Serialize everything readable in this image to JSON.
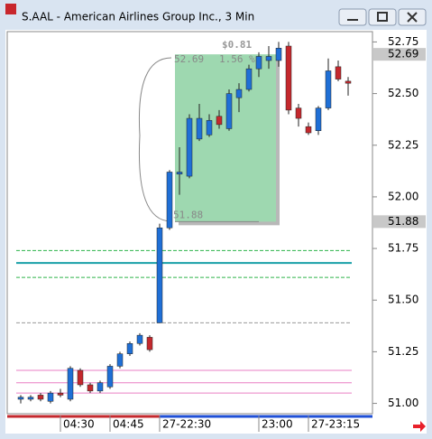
{
  "chart_data": {
    "type": "candlestick",
    "title": "S.AAL - American Airlines Group Inc., 3 Min",
    "categories": [
      null,
      null,
      null,
      null,
      "04:30",
      null,
      null,
      null,
      null,
      "04:45",
      null,
      null,
      null,
      null,
      "27-22:30",
      null,
      null,
      null,
      null,
      null,
      null,
      null,
      null,
      null,
      "23:00",
      null,
      null,
      null,
      null,
      "27-23:15",
      null,
      null,
      null,
      null
    ],
    "open": [
      51.02,
      51.02,
      51.04,
      51.01,
      51.05,
      51.02,
      51.16,
      51.09,
      51.06,
      51.08,
      51.18,
      51.24,
      51.29,
      51.32,
      51.39,
      51.85,
      52.11,
      52.1,
      52.28,
      52.3,
      52.39,
      52.33,
      52.48,
      52.52,
      52.62,
      52.66,
      52.66,
      52.73,
      52.43,
      52.34,
      52.32,
      52.43,
      52.63,
      52.56
    ],
    "high": [
      51.04,
      51.04,
      51.05,
      51.06,
      51.07,
      51.18,
      51.17,
      51.1,
      51.11,
      51.19,
      51.25,
      51.3,
      51.34,
      51.33,
      51.87,
      52.13,
      52.24,
      52.4,
      52.45,
      52.4,
      52.42,
      52.52,
      52.55,
      52.64,
      52.7,
      52.73,
      52.75,
      52.75,
      52.45,
      52.36,
      52.44,
      52.67,
      52.66,
      52.58
    ],
    "low": [
      51.0,
      51.01,
      51.01,
      51.0,
      51.03,
      51.01,
      51.08,
      51.05,
      51.05,
      51.07,
      51.17,
      51.23,
      51.28,
      51.25,
      51.39,
      51.84,
      52.01,
      52.09,
      52.27,
      52.29,
      52.33,
      52.32,
      52.41,
      52.51,
      52.58,
      52.62,
      52.63,
      52.4,
      52.34,
      52.3,
      52.3,
      52.42,
      52.56,
      52.49
    ],
    "close": [
      51.03,
      51.03,
      51.02,
      51.05,
      51.04,
      51.17,
      51.09,
      51.06,
      51.1,
      51.18,
      51.24,
      51.29,
      51.33,
      51.26,
      51.85,
      52.12,
      52.12,
      52.38,
      52.38,
      52.37,
      52.35,
      52.5,
      52.52,
      52.62,
      52.68,
      52.68,
      52.72,
      52.42,
      52.38,
      52.31,
      52.43,
      52.61,
      52.57,
      52.55
    ],
    "up_color": "#1f6fd6",
    "down_color": "#c4282d",
    "ylim": [
      50.95,
      52.8
    ],
    "yticks": [
      {
        "value": 51,
        "label": "51.00"
      },
      51.25,
      {
        "value": 51.5,
        "label": "51.50"
      },
      51.75,
      {
        "value": 52,
        "label": "52.00"
      },
      52.25,
      {
        "value": 52.5,
        "label": "52.50"
      },
      52.75
    ],
    "price_markers": [
      52.69,
      51.88
    ],
    "reference_lines": [
      {
        "value": 51.74,
        "color": "#2db34a",
        "dash": true
      },
      {
        "value": 51.68,
        "color": "#1aa0a8",
        "dash": false
      },
      {
        "value": 51.61,
        "color": "#2db34a",
        "dash": true
      },
      {
        "value": 51.39,
        "color": "#9a9a9a",
        "dash": true
      },
      {
        "value": 51.16,
        "color": "#e97fc4",
        "dash": false
      },
      {
        "value": 51.1,
        "color": "#e97fc4",
        "dash": false
      },
      {
        "value": 51.05,
        "color": "#e97fc4",
        "dash": false
      }
    ],
    "measurement": {
      "change": "$0.81",
      "high": 52.69,
      "percent": "1.56 %",
      "low": 51.88
    }
  }
}
